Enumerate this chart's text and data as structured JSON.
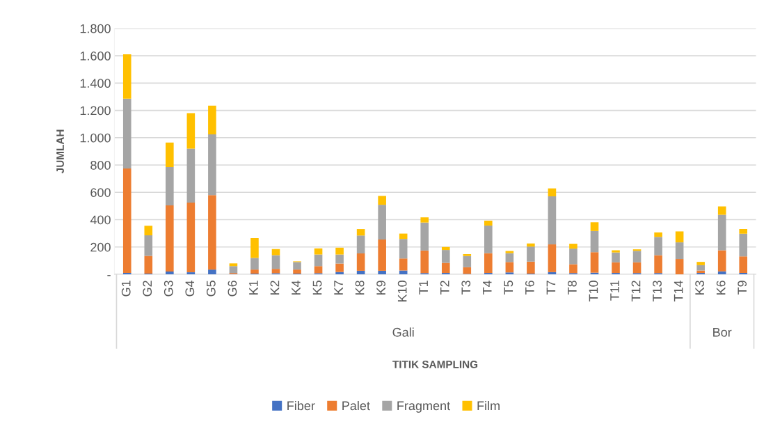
{
  "chart_data": {
    "type": "bar",
    "stacked": true,
    "ylabel": "JUMLAH",
    "categories": [
      "G1",
      "G2",
      "G3",
      "G4",
      "G5",
      "G6",
      "K1",
      "K2",
      "K4",
      "K5",
      "K7",
      "K8",
      "K9",
      "K10",
      "T1",
      "T2",
      "T3",
      "T4",
      "T5",
      "T6",
      "T7",
      "T8",
      "T10",
      "T11",
      "T12",
      "T13",
      "T14",
      "K3",
      "K6",
      "T9"
    ],
    "series": [
      {
        "name": "Fiber",
        "color": "#4472c4",
        "values": [
          10,
          5,
          20,
          15,
          35,
          3,
          5,
          8,
          5,
          8,
          17,
          26,
          26,
          28,
          9,
          10,
          3,
          10,
          14,
          5,
          16,
          9,
          12,
          10,
          9,
          9,
          null,
          10,
          22,
          10
        ]
      },
      {
        "name": "Palet",
        "color": "#ed7d31",
        "values": [
          765,
          130,
          485,
          510,
          545,
          7,
          30,
          32,
          30,
          52,
          62,
          127,
          229,
          88,
          165,
          74,
          49,
          145,
          76,
          88,
          203,
          65,
          150,
          78,
          79,
          131,
          112,
          18,
          154,
          121
        ]
      },
      {
        "name": "Fragment",
        "color": "#a5a5a5",
        "values": [
          510,
          150,
          280,
          395,
          445,
          50,
          85,
          100,
          55,
          85,
          66,
          131,
          254,
          143,
          205,
          94,
          82,
          202,
          65,
          110,
          352,
          114,
          155,
          72,
          84,
          134,
          122,
          39,
          260,
          166
        ]
      },
      {
        "name": "Film",
        "color": "#ffc000",
        "values": [
          325,
          70,
          180,
          260,
          210,
          20,
          145,
          45,
          5,
          45,
          50,
          47,
          65,
          39,
          38,
          22,
          14,
          36,
          16,
          23,
          58,
          36,
          64,
          16,
          11,
          33,
          80,
          24,
          61,
          34
        ]
      }
    ],
    "ylim": [
      0,
      1800
    ],
    "yticks": [
      {
        "value": 0,
        "label": "-"
      },
      {
        "value": 200,
        "label": "200"
      },
      {
        "value": 400,
        "label": "400"
      },
      {
        "value": 600,
        "label": "600"
      },
      {
        "value": 800,
        "label": "800"
      },
      {
        "value": 1000,
        "label": "1.000"
      },
      {
        "value": 1200,
        "label": "1.200"
      },
      {
        "value": 1400,
        "label": "1.400"
      },
      {
        "value": 1600,
        "label": "1.600"
      },
      {
        "value": 1800,
        "label": "1.800"
      }
    ],
    "annotations": [
      "Gali",
      "Bor",
      "TITIK SAMPLING"
    ],
    "grid": "y",
    "legend": "bottom"
  }
}
